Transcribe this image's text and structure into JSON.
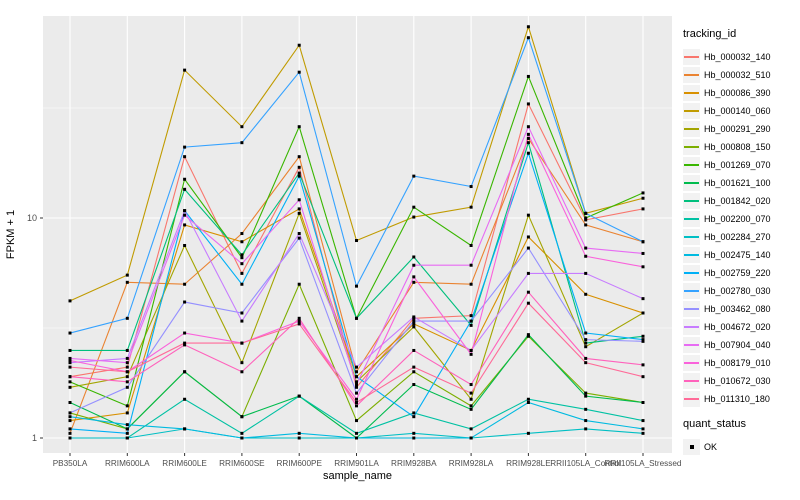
{
  "chart_data": {
    "type": "line",
    "xlabel": "sample_name",
    "ylabel": "FPKM + 1",
    "y_scale": "log10",
    "y_ticks": [
      1,
      10
    ],
    "grid": true,
    "legend_position": "right",
    "legend_title": "tracking_id",
    "point_legend_title": "quant_status",
    "point_legend_value": "OK",
    "panel_bg": "#EBEBEB",
    "grid_color": "#FFFFFF",
    "tick_label_color": "#4D4D4D",
    "categories": [
      "PB350LA",
      "RRIM600LA",
      "RRIM600LE",
      "RRIM600SE",
      "RRIM600PE",
      "RRIM901LA",
      "RRIM928BA",
      "RRIM928LA",
      "RRIM928LE",
      "RRII105LA_Control",
      "RRII105LA_Stressed"
    ],
    "series": [
      {
        "name": "Hb_000032_140",
        "color": "#F8766D",
        "values": [
          1.9,
          2.1,
          19,
          5.6,
          17,
          1.7,
          3.5,
          3.6,
          33,
          9.8,
          11
        ]
      },
      {
        "name": "Hb_000032_510",
        "color": "#EA8331",
        "values": [
          1.05,
          5.1,
          5.0,
          8.5,
          19,
          2.0,
          5.1,
          5.0,
          23,
          9.3,
          7.8
        ]
      },
      {
        "name": "Hb_000086_390",
        "color": "#D89000",
        "values": [
          1.2,
          1.3,
          9.3,
          7.8,
          11,
          1.9,
          3.3,
          2.5,
          8.2,
          4.5,
          3.7
        ]
      },
      {
        "name": "Hb_000140_060",
        "color": "#C09B00",
        "values": [
          4.2,
          5.5,
          47,
          26,
          61,
          7.9,
          10.1,
          11.2,
          74,
          10.5,
          12.3
        ]
      },
      {
        "name": "Hb_000291_290",
        "color": "#A3A500",
        "values": [
          1.7,
          1.9,
          7.5,
          2.2,
          10.5,
          1.8,
          3.2,
          1.5,
          10.3,
          2.6,
          3.7
        ]
      },
      {
        "name": "Hb_000808_150",
        "color": "#7CAE00",
        "values": [
          1.3,
          1.1,
          2.0,
          1.25,
          5.0,
          1.2,
          2.0,
          1.4,
          2.9,
          1.6,
          1.45
        ]
      },
      {
        "name": "Hb_001269_070",
        "color": "#39B600",
        "values": [
          1.8,
          1.4,
          15,
          6.6,
          26,
          3.5,
          11.2,
          7.5,
          44,
          10,
          13
        ]
      },
      {
        "name": "Hb_001621_100",
        "color": "#00BB4E",
        "values": [
          1.45,
          1.1,
          2.0,
          1.25,
          1.55,
          1.0,
          1.75,
          1.35,
          2.95,
          1.55,
          1.45
        ]
      },
      {
        "name": "Hb_001842_020",
        "color": "#00BF7D",
        "values": [
          2.5,
          2.5,
          13.5,
          6.8,
          16,
          3.5,
          6.65,
          3.25,
          22,
          2.7,
          2.9
        ]
      },
      {
        "name": "Hb_002200_070",
        "color": "#00C1A3",
        "values": [
          1.0,
          1.0,
          1.5,
          1.05,
          1.55,
          1.05,
          1.3,
          1.1,
          1.5,
          1.35,
          1.2
        ]
      },
      {
        "name": "Hb_002284_270",
        "color": "#00BFC4",
        "values": [
          1.0,
          1.0,
          1.1,
          1.0,
          1.0,
          1.0,
          1.05,
          1.0,
          1.05,
          1.1,
          1.05
        ]
      },
      {
        "name": "Hb_002475_140",
        "color": "#00BAE0",
        "values": [
          1.25,
          1.15,
          1.1,
          1.0,
          1.05,
          1.0,
          1.0,
          1.0,
          1.45,
          1.2,
          1.1
        ]
      },
      {
        "name": "Hb_002759_220",
        "color": "#00B0F6",
        "values": [
          1.1,
          1.05,
          10.8,
          5.0,
          15.5,
          1.9,
          1.25,
          3.4,
          19.7,
          3.0,
          2.8
        ]
      },
      {
        "name": "Hb_002780_030",
        "color": "#35A2FF",
        "values": [
          3.0,
          3.5,
          21,
          22,
          46,
          4.9,
          15.5,
          13.9,
          66,
          10.5,
          7.8
        ]
      },
      {
        "name": "Hb_003462_080",
        "color": "#9590FF",
        "values": [
          1.3,
          1.7,
          4.15,
          3.7,
          8.1,
          1.6,
          3.4,
          3.4,
          7.3,
          2.8,
          2.75
        ]
      },
      {
        "name": "Hb_004672_020",
        "color": "#C77CFF",
        "values": [
          2.2,
          2.3,
          10.8,
          3.4,
          8.5,
          2.1,
          3.55,
          2.5,
          5.6,
          5.6,
          4.3
        ]
      },
      {
        "name": "Hb_007904_040",
        "color": "#E76BF3",
        "values": [
          2.3,
          2.2,
          10.3,
          6.2,
          12.1,
          1.75,
          6.1,
          6.1,
          26,
          7.3,
          6.9
        ]
      },
      {
        "name": "Hb_008179_010",
        "color": "#FA62DB",
        "values": [
          2.25,
          2.0,
          3.0,
          2.7,
          3.4,
          1.5,
          5.4,
          2.4,
          24,
          6.7,
          6.0
        ]
      },
      {
        "name": "Hb_010672_030",
        "color": "#FF62BC",
        "values": [
          1.9,
          1.8,
          2.65,
          2.0,
          3.5,
          1.4,
          2.5,
          1.75,
          4.6,
          2.3,
          2.15
        ]
      },
      {
        "name": "Hb_011310_180",
        "color": "#FF6A98",
        "values": [
          2.1,
          2.0,
          2.7,
          2.7,
          3.3,
          1.45,
          2.1,
          1.6,
          4.1,
          2.2,
          1.9
        ]
      }
    ]
  }
}
